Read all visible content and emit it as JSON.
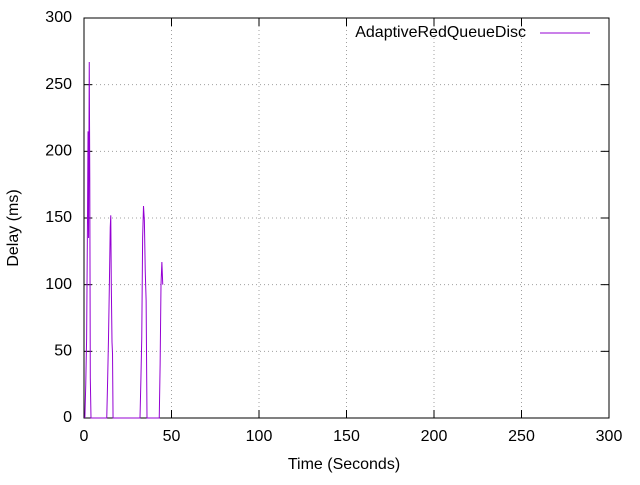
{
  "chart_data": {
    "type": "line",
    "xlabel": "Time (Seconds)",
    "ylabel": "Delay (ms)",
    "xlim": [
      0,
      300
    ],
    "ylim": [
      0,
      300
    ],
    "xticks": [
      0,
      50,
      100,
      150,
      200,
      250,
      300
    ],
    "yticks": [
      0,
      50,
      100,
      150,
      200,
      250,
      300
    ],
    "grid": true,
    "legend": "top-right",
    "x": [
      0.5,
      1,
      1.5,
      2,
      2.3,
      2.6,
      3,
      3.3,
      3.6,
      4,
      13,
      13.5,
      14,
      14.5,
      15,
      15.3,
      15.6,
      16,
      16.3,
      16.6,
      32,
      32.5,
      33,
      33.5,
      34,
      34.5,
      35,
      35.5,
      36,
      43,
      43.5,
      44,
      44.5,
      45
    ],
    "series": [
      {
        "name": "AdaptiveRedQueueDisc",
        "color": "#9400d3",
        "values": [
          0,
          25,
          60,
          150,
          215,
          135,
          267,
          180,
          30,
          0,
          0,
          28,
          60,
          100,
          143,
          152,
          100,
          57,
          48,
          0,
          0,
          28,
          60,
          135,
          159,
          148,
          110,
          88,
          0,
          0,
          40,
          100,
          117,
          100
        ]
      }
    ]
  }
}
